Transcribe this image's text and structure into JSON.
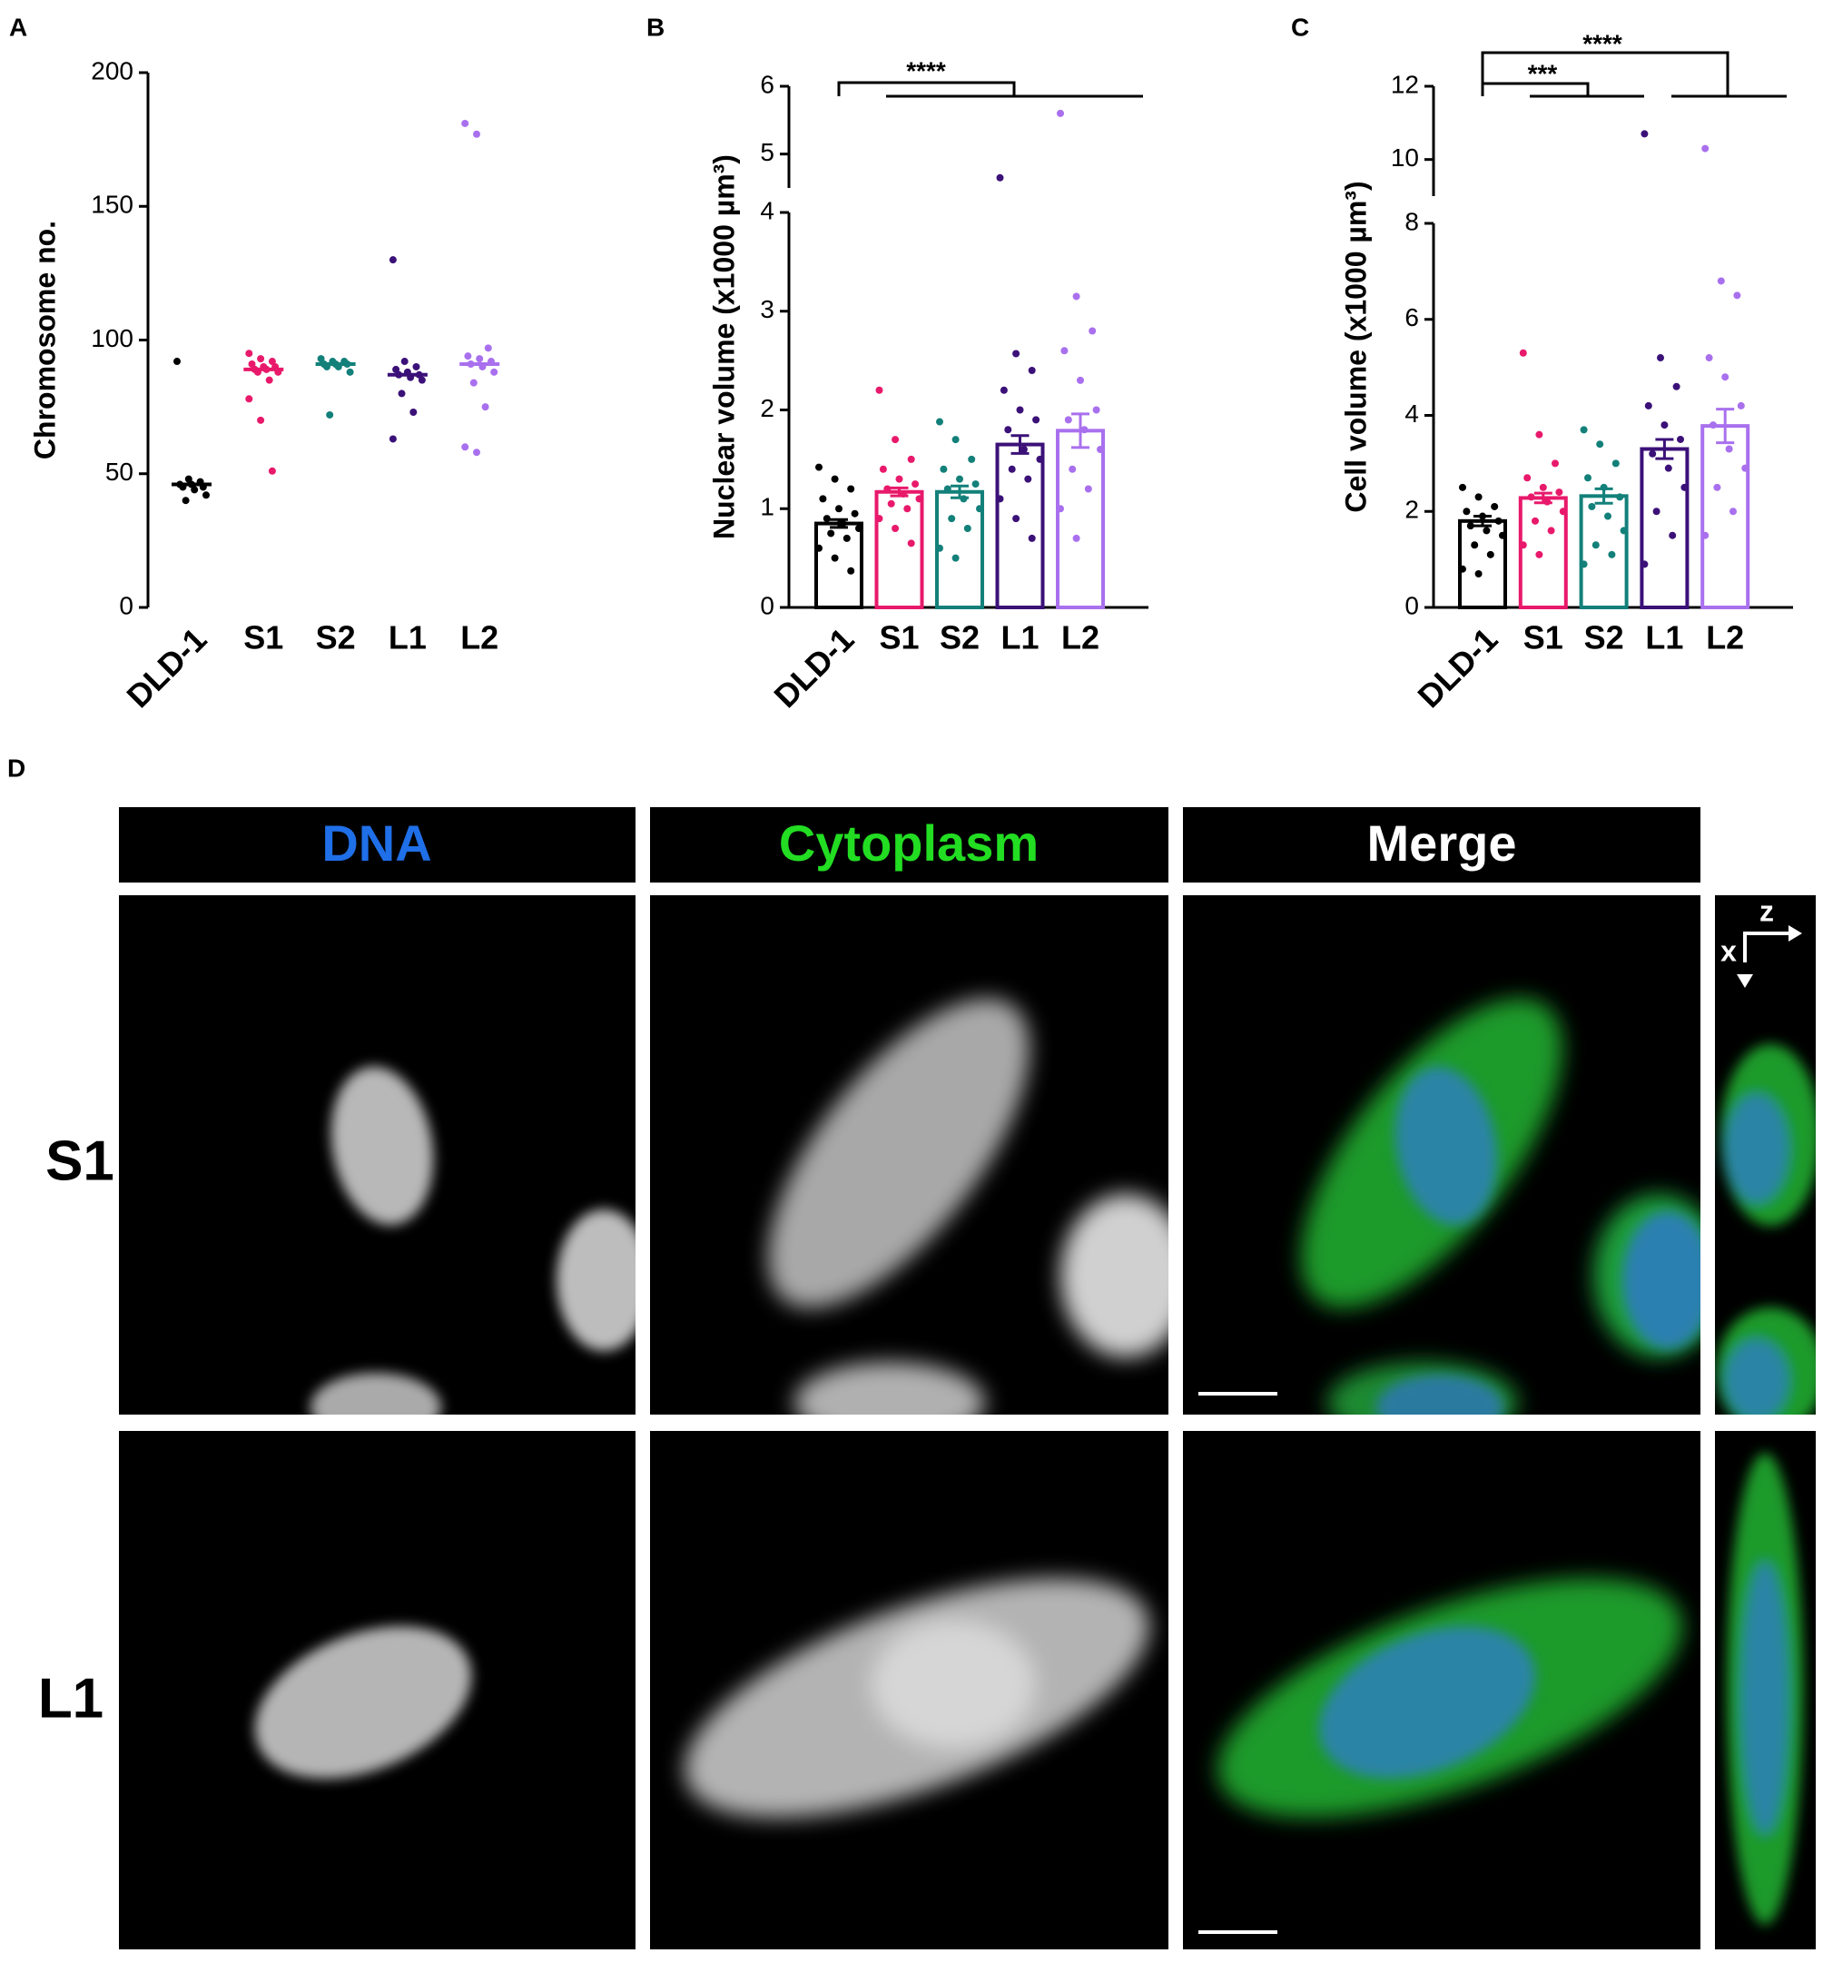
{
  "chart_data": [
    {
      "type": "strip",
      "panel": "A",
      "ylabel": "Chromosome no.",
      "categories": [
        "DLD-1",
        "S1",
        "S2",
        "L1",
        "L2"
      ],
      "ylim": [
        0,
        200
      ],
      "yticks": [
        0,
        50,
        100,
        150,
        200
      ],
      "x_axis_line": false,
      "groups": [
        {
          "color": "#000000",
          "mean": 46,
          "points": [
            92,
            48,
            47,
            46,
            46,
            45,
            45,
            44,
            42,
            40
          ]
        },
        {
          "color": "#e8196b",
          "mean": 89,
          "points": [
            95,
            93,
            92,
            91,
            90,
            90,
            89,
            89,
            88,
            88,
            85,
            78,
            70,
            51
          ]
        },
        {
          "color": "#13807a",
          "mean": 91,
          "points": [
            93,
            92,
            92,
            91,
            91,
            91,
            90,
            90,
            88,
            72
          ]
        },
        {
          "color": "#3b1178",
          "mean": 87,
          "points": [
            130,
            92,
            90,
            89,
            88,
            87,
            87,
            86,
            85,
            80,
            73,
            63
          ]
        },
        {
          "color": "#a970ee",
          "mean": 91,
          "points": [
            181,
            177,
            97,
            94,
            93,
            92,
            91,
            90,
            88,
            84,
            75,
            60,
            58
          ]
        }
      ]
    },
    {
      "type": "bar",
      "panel": "B",
      "ylabel": "Nuclear volume (x1000 µm³)",
      "categories": [
        "DLD-1",
        "S1",
        "S2",
        "L1",
        "L2"
      ],
      "x_axis_line": true,
      "segments": [
        {
          "ylim": [
            0,
            4
          ],
          "yticks": [
            0,
            1,
            2,
            3,
            4
          ]
        },
        {
          "ylim": [
            4.5,
            6
          ],
          "yticks": [
            5,
            6
          ]
        }
      ],
      "annotations": [
        "****"
      ],
      "groups": [
        {
          "color": "#000000",
          "mean": 0.85,
          "error": 0.04,
          "points": [
            1.42,
            1.3,
            1.2,
            1.1,
            1.0,
            0.95,
            0.9,
            0.85,
            0.8,
            0.75,
            0.7,
            0.6,
            0.5,
            0.37
          ]
        },
        {
          "color": "#e8196b",
          "mean": 1.17,
          "error": 0.04,
          "points": [
            2.2,
            1.7,
            1.5,
            1.4,
            1.3,
            1.25,
            1.2,
            1.15,
            1.1,
            1.05,
            1.0,
            0.9,
            0.8,
            0.65
          ]
        },
        {
          "color": "#13807a",
          "mean": 1.17,
          "error": 0.06,
          "points": [
            1.88,
            1.7,
            1.5,
            1.4,
            1.3,
            1.25,
            1.2,
            1.1,
            1.0,
            0.9,
            0.8,
            0.6,
            0.5
          ]
        },
        {
          "color": "#3b1178",
          "mean": 1.65,
          "error": 0.09,
          "points": [
            4.65,
            2.57,
            2.4,
            2.2,
            2.0,
            1.9,
            1.8,
            1.6,
            1.5,
            1.4,
            1.3,
            1.1,
            0.9,
            0.7
          ]
        },
        {
          "color": "#a970ee",
          "mean": 1.79,
          "error": 0.17,
          "points": [
            5.6,
            3.15,
            2.8,
            2.6,
            2.3,
            2.0,
            1.9,
            1.8,
            1.6,
            1.4,
            1.2,
            1.0,
            0.7
          ]
        }
      ]
    },
    {
      "type": "bar",
      "panel": "C",
      "ylabel": "Cell volume (x1000 µm³)",
      "categories": [
        "DLD-1",
        "S1",
        "S2",
        "L1",
        "L2"
      ],
      "x_axis_line": true,
      "segments": [
        {
          "ylim": [
            0,
            8
          ],
          "yticks": [
            0,
            2,
            4,
            6,
            8
          ]
        },
        {
          "ylim": [
            9,
            12
          ],
          "yticks": [
            10,
            12
          ]
        }
      ],
      "annotations": [
        "***",
        "****"
      ],
      "groups": [
        {
          "color": "#000000",
          "mean": 1.8,
          "error": 0.1,
          "points": [
            2.5,
            2.3,
            2.1,
            2.0,
            1.9,
            1.8,
            1.7,
            1.6,
            1.5,
            1.3,
            1.1,
            0.8,
            0.7
          ]
        },
        {
          "color": "#e8196b",
          "mean": 2.28,
          "error": 0.1,
          "points": [
            5.3,
            3.6,
            3.0,
            2.7,
            2.5,
            2.4,
            2.3,
            2.2,
            2.0,
            1.8,
            1.6,
            1.3,
            1.1
          ]
        },
        {
          "color": "#13807a",
          "mean": 2.32,
          "error": 0.15,
          "points": [
            3.7,
            3.4,
            3.0,
            2.7,
            2.5,
            2.3,
            2.1,
            1.9,
            1.6,
            1.3,
            1.1,
            0.9
          ]
        },
        {
          "color": "#3b1178",
          "mean": 3.3,
          "error": 0.2,
          "points": [
            10.7,
            5.2,
            4.6,
            4.2,
            3.8,
            3.5,
            3.2,
            2.9,
            2.5,
            2.0,
            1.5,
            0.9
          ]
        },
        {
          "color": "#a970ee",
          "mean": 3.78,
          "error": 0.35,
          "points": [
            10.3,
            6.8,
            6.5,
            5.2,
            4.8,
            4.2,
            3.8,
            3.3,
            2.9,
            2.5,
            2.0,
            1.5
          ]
        }
      ]
    }
  ],
  "panel_d": {
    "label": "D",
    "columns": [
      "DNA",
      "Cytoplasm",
      "Merge"
    ],
    "rows": [
      "S1",
      "L1"
    ],
    "axis_labels": [
      "z",
      "x"
    ]
  }
}
